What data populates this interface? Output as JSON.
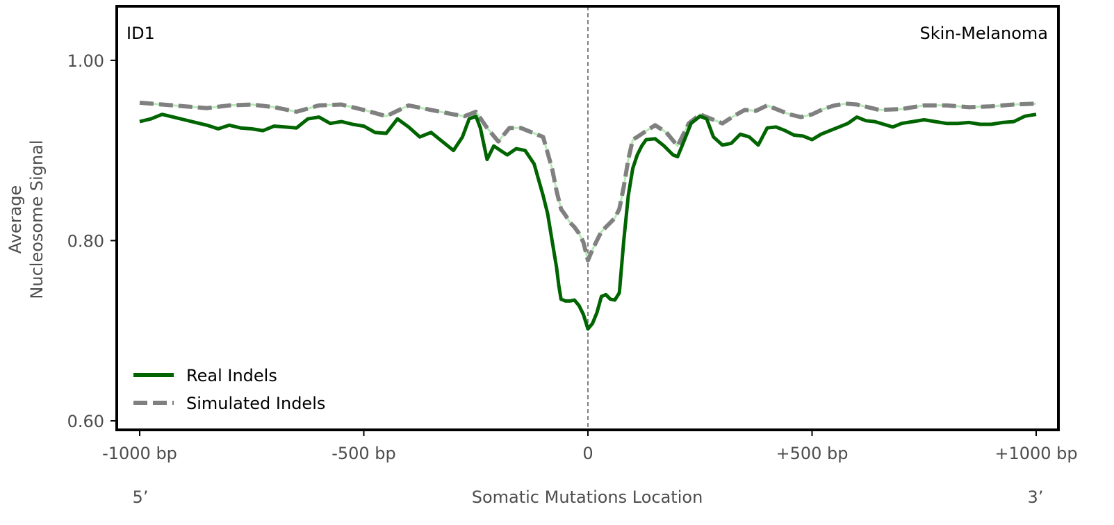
{
  "chart_data": {
    "type": "line",
    "panel_label": "ID1",
    "tissue_label": "Skin-Melanoma",
    "xlabel": "Somatic Mutations Location",
    "ylabel_line1": "Average",
    "ylabel_line2": "Nucleosome Signal",
    "end_label_left": "5’",
    "end_label_right": "3’",
    "xlim": [
      -1000,
      1000
    ],
    "ylim": [
      0.59,
      1.06
    ],
    "x_ticks": [
      {
        "value": -1000,
        "label": "-1000 bp"
      },
      {
        "value": -500,
        "label": "-500 bp"
      },
      {
        "value": 0,
        "label": "0"
      },
      {
        "value": 500,
        "label": "+500 bp"
      },
      {
        "value": 1000,
        "label": "+1000 bp"
      }
    ],
    "y_ticks": [
      {
        "value": 0.6,
        "label": "0.60"
      },
      {
        "value": 0.8,
        "label": "0.80"
      },
      {
        "value": 1.0,
        "label": "1.00"
      }
    ],
    "reference_line_x": 0,
    "legend_position": "lower-left",
    "grid": false,
    "series": [
      {
        "name": "Real Indels",
        "color": "#006400",
        "style": "solid",
        "x": [
          -1000,
          -975,
          -950,
          -925,
          -900,
          -875,
          -850,
          -825,
          -800,
          -775,
          -750,
          -725,
          -700,
          -675,
          -650,
          -625,
          -600,
          -575,
          -550,
          -525,
          -500,
          -475,
          -450,
          -425,
          -400,
          -375,
          -350,
          -325,
          -300,
          -280,
          -265,
          -250,
          -240,
          -225,
          -210,
          -195,
          -180,
          -160,
          -140,
          -120,
          -100,
          -90,
          -80,
          -70,
          -65,
          -60,
          -50,
          -40,
          -30,
          -20,
          -10,
          0,
          10,
          20,
          30,
          40,
          50,
          60,
          70,
          80,
          90,
          100,
          110,
          120,
          130,
          150,
          170,
          190,
          200,
          210,
          230,
          250,
          265,
          280,
          300,
          320,
          340,
          360,
          380,
          400,
          420,
          440,
          460,
          480,
          500,
          520,
          540,
          560,
          580,
          600,
          620,
          640,
          660,
          680,
          700,
          725,
          750,
          775,
          800,
          825,
          850,
          875,
          900,
          925,
          950,
          975,
          1000
        ],
        "y": [
          0.932,
          0.935,
          0.94,
          0.937,
          0.934,
          0.931,
          0.928,
          0.924,
          0.928,
          0.925,
          0.924,
          0.922,
          0.927,
          0.926,
          0.925,
          0.935,
          0.937,
          0.93,
          0.932,
          0.929,
          0.927,
          0.92,
          0.919,
          0.935,
          0.926,
          0.915,
          0.92,
          0.91,
          0.9,
          0.915,
          0.935,
          0.938,
          0.925,
          0.89,
          0.905,
          0.9,
          0.895,
          0.902,
          0.9,
          0.885,
          0.85,
          0.83,
          0.8,
          0.77,
          0.75,
          0.735,
          0.733,
          0.733,
          0.734,
          0.728,
          0.718,
          0.702,
          0.708,
          0.72,
          0.738,
          0.74,
          0.735,
          0.734,
          0.742,
          0.8,
          0.85,
          0.88,
          0.895,
          0.905,
          0.912,
          0.913,
          0.905,
          0.895,
          0.893,
          0.905,
          0.93,
          0.938,
          0.935,
          0.915,
          0.906,
          0.908,
          0.918,
          0.915,
          0.906,
          0.925,
          0.926,
          0.922,
          0.917,
          0.916,
          0.912,
          0.918,
          0.922,
          0.926,
          0.93,
          0.937,
          0.933,
          0.932,
          0.929,
          0.926,
          0.93,
          0.932,
          0.934,
          0.932,
          0.93,
          0.93,
          0.931,
          0.929,
          0.929,
          0.931,
          0.932,
          0.938,
          0.94
        ]
      },
      {
        "name": "Simulated Indels",
        "color": "#808080",
        "style": "dashed",
        "x": [
          -1000,
          -950,
          -900,
          -850,
          -800,
          -750,
          -700,
          -650,
          -600,
          -550,
          -500,
          -450,
          -400,
          -350,
          -300,
          -275,
          -250,
          -225,
          -200,
          -175,
          -150,
          -125,
          -100,
          -80,
          -70,
          -60,
          -50,
          -40,
          -30,
          -20,
          -10,
          0,
          10,
          20,
          30,
          40,
          50,
          60,
          70,
          80,
          90,
          100,
          110,
          125,
          150,
          175,
          200,
          225,
          250,
          275,
          300,
          325,
          350,
          375,
          400,
          425,
          450,
          475,
          500,
          525,
          550,
          575,
          600,
          650,
          700,
          750,
          800,
          850,
          900,
          950,
          1000
        ],
        "y": [
          0.953,
          0.951,
          0.949,
          0.947,
          0.95,
          0.951,
          0.948,
          0.943,
          0.95,
          0.951,
          0.945,
          0.938,
          0.95,
          0.945,
          0.94,
          0.938,
          0.943,
          0.925,
          0.91,
          0.925,
          0.925,
          0.92,
          0.915,
          0.88,
          0.855,
          0.835,
          0.828,
          0.82,
          0.815,
          0.808,
          0.798,
          0.778,
          0.79,
          0.8,
          0.81,
          0.815,
          0.82,
          0.825,
          0.835,
          0.86,
          0.89,
          0.912,
          0.915,
          0.92,
          0.928,
          0.92,
          0.905,
          0.93,
          0.94,
          0.935,
          0.93,
          0.938,
          0.945,
          0.944,
          0.95,
          0.945,
          0.94,
          0.937,
          0.94,
          0.946,
          0.95,
          0.952,
          0.951,
          0.945,
          0.946,
          0.95,
          0.95,
          0.948,
          0.949,
          0.951,
          0.952
        ]
      }
    ]
  }
}
